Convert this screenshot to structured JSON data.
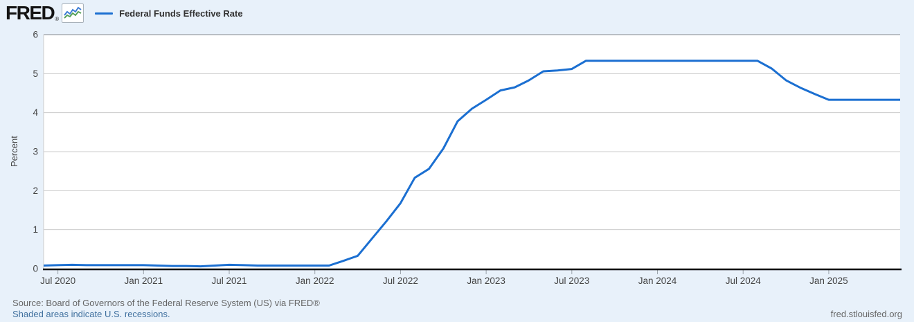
{
  "header": {
    "logo_text": "FRED",
    "registered_mark": "®",
    "legend": {
      "label": "Federal Funds Effective Rate",
      "swatch_color": "#1b6fd1"
    }
  },
  "footer": {
    "source_text": "Source: Board of Governors of the Federal Reserve System (US) via FRED®",
    "recession_note": "Shaded areas indicate U.S. recessions.",
    "site_url": "fred.stlouisfed.org"
  },
  "chart_data": {
    "type": "line",
    "title": "",
    "series_name": "Federal Funds Effective Rate",
    "ylabel": "Percent",
    "xlabel": "",
    "ylim": [
      0,
      6
    ],
    "y_ticks": [
      0,
      1,
      2,
      3,
      4,
      5,
      6
    ],
    "grid": "horizontal gridlines on, white plot on pale-blue margin",
    "legend_position": "top-left header",
    "line_color": "#1b6fd1",
    "x": [
      "2020-06",
      "2020-07",
      "2020-08",
      "2020-09",
      "2020-10",
      "2020-11",
      "2020-12",
      "2021-01",
      "2021-02",
      "2021-03",
      "2021-04",
      "2021-05",
      "2021-06",
      "2021-07",
      "2021-08",
      "2021-09",
      "2021-10",
      "2021-11",
      "2021-12",
      "2022-01",
      "2022-02",
      "2022-03",
      "2022-04",
      "2022-05",
      "2022-06",
      "2022-07",
      "2022-08",
      "2022-09",
      "2022-10",
      "2022-11",
      "2022-12",
      "2023-01",
      "2023-02",
      "2023-03",
      "2023-04",
      "2023-05",
      "2023-06",
      "2023-07",
      "2023-08",
      "2023-09",
      "2023-10",
      "2023-11",
      "2023-12",
      "2024-01",
      "2024-02",
      "2024-03",
      "2024-04",
      "2024-05",
      "2024-06",
      "2024-07",
      "2024-08",
      "2024-09",
      "2024-10",
      "2024-11",
      "2024-12",
      "2025-01",
      "2025-02",
      "2025-03",
      "2025-04",
      "2025-05",
      "2025-06"
    ],
    "values": [
      0.08,
      0.09,
      0.1,
      0.09,
      0.09,
      0.09,
      0.09,
      0.09,
      0.08,
      0.07,
      0.07,
      0.06,
      0.08,
      0.1,
      0.09,
      0.08,
      0.08,
      0.08,
      0.08,
      0.08,
      0.08,
      0.2,
      0.33,
      0.77,
      1.21,
      1.68,
      2.33,
      2.56,
      3.08,
      3.78,
      4.1,
      4.33,
      4.57,
      4.65,
      4.83,
      5.06,
      5.08,
      5.12,
      5.33,
      5.33,
      5.33,
      5.33,
      5.33,
      5.33,
      5.33,
      5.33,
      5.33,
      5.33,
      5.33,
      5.33,
      5.33,
      5.13,
      4.83,
      4.64,
      4.48,
      4.33,
      4.33,
      4.33,
      4.33,
      4.33,
      4.33
    ],
    "x_tick_labels": [
      "Jul 2020",
      "Jan 2021",
      "Jul 2021",
      "Jan 2022",
      "Jul 2022",
      "Jan 2023",
      "Jul 2023",
      "Jan 2024",
      "Jul 2024",
      "Jan 2025"
    ],
    "x_tick_positions": [
      1,
      7,
      13,
      19,
      25,
      31,
      37,
      43,
      49,
      55
    ]
  }
}
